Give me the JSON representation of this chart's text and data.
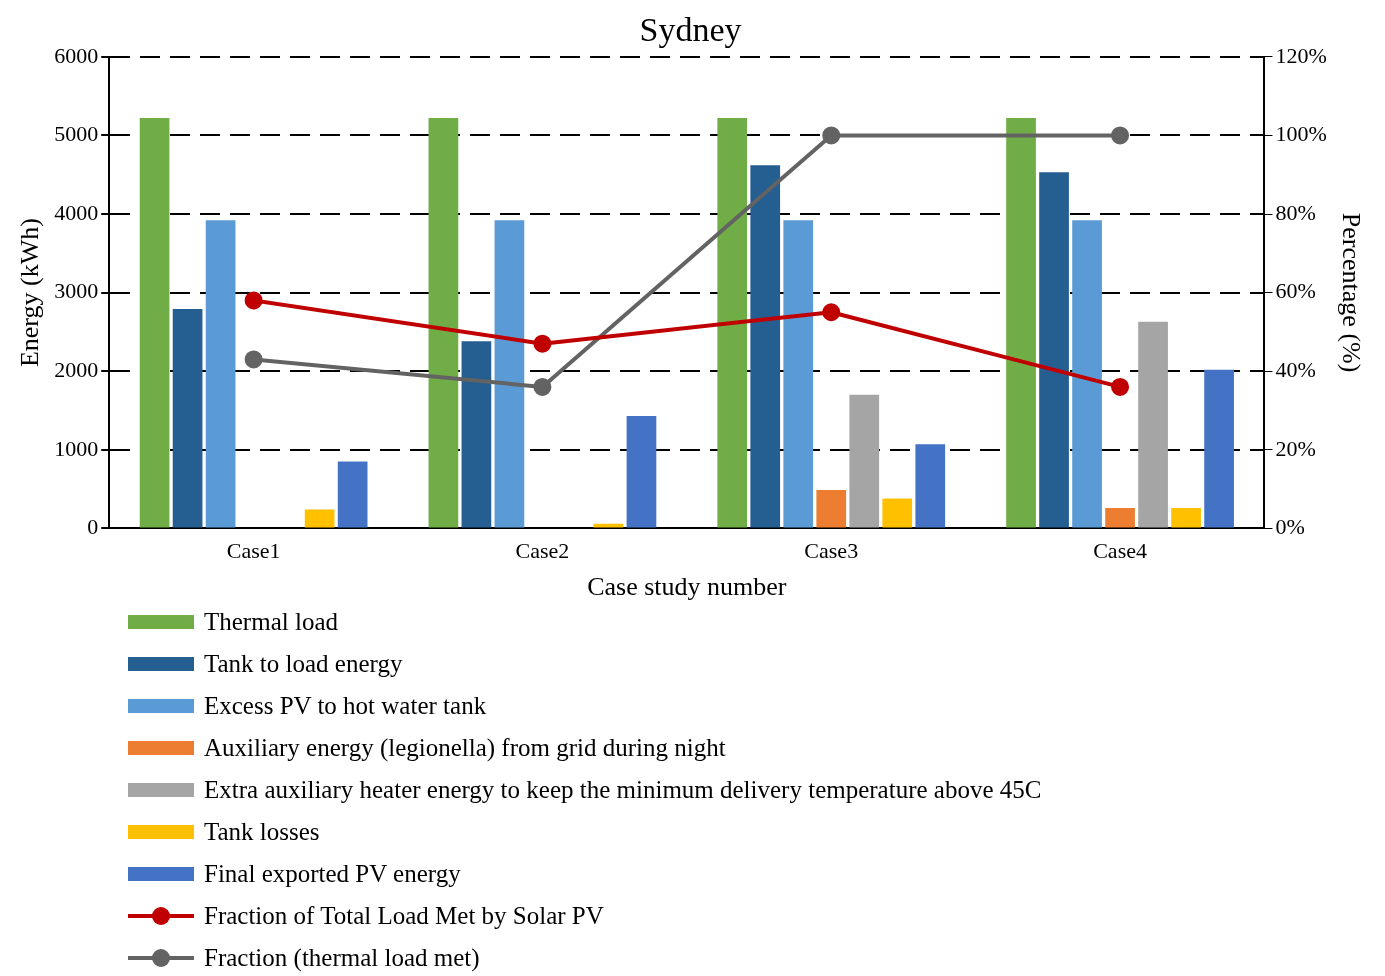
{
  "chart_data": {
    "type": "bar",
    "title": "Sydney",
    "xlabel": "Case study number",
    "ylabel": "Energy (kWh)",
    "y2label": "Percentage (%)",
    "categories": [
      "Case1",
      "Case2",
      "Case3",
      "Case4"
    ],
    "series": [
      {
        "name": "Thermal load",
        "color": "#70ad47",
        "values": [
          5220,
          5220,
          5220,
          5220
        ]
      },
      {
        "name": "Tank to load energy",
        "color": "#255e91",
        "values": [
          2790,
          2380,
          4620,
          4530
        ]
      },
      {
        "name": "Excess PV to hot water tank",
        "color": "#5b9bd5",
        "values": [
          3920,
          3920,
          3920,
          3920
        ]
      },
      {
        "name": "Auxiliary energy (legionella) from grid during night",
        "color": "#ed7d31",
        "values": [
          null,
          null,
          490,
          260
        ]
      },
      {
        "name": "Extra auxiliary heater energy to keep the minimum delivery temperature above 45C",
        "color": "#a5a5a5",
        "values": [
          null,
          null,
          1700,
          2630
        ]
      },
      {
        "name": "Tank losses",
        "color": "#ffc000",
        "values": [
          240,
          60,
          380,
          260
        ]
      },
      {
        "name": "Final exported PV energy",
        "color": "#4472c4",
        "values": [
          850,
          1430,
          1070,
          2020
        ]
      },
      {
        "name": "Fraction of Total Load Met by Solar PV",
        "type": "line",
        "axis": "y2",
        "color": "#c00000",
        "values": [
          58,
          47,
          55,
          36
        ]
      },
      {
        "name": "Fraction (thermal load met)",
        "type": "line",
        "axis": "y2",
        "color": "#636363",
        "values": [
          43,
          36,
          100,
          100
        ]
      }
    ],
    "ylim": [
      0,
      6000
    ],
    "yticks": [
      0,
      1000,
      2000,
      3000,
      4000,
      5000,
      6000
    ],
    "y2lim": [
      0,
      120
    ],
    "y2ticks": [
      {
        "value": 0,
        "label": "0%"
      },
      {
        "value": 20,
        "label": "20%"
      },
      {
        "value": 40,
        "label": "40%"
      },
      {
        "value": 60,
        "label": "60%"
      },
      {
        "value": 80,
        "label": "80%"
      },
      {
        "value": 100,
        "label": "100%"
      },
      {
        "value": 120,
        "label": "120%"
      }
    ],
    "grid": "y",
    "legend": "bottom",
    "marker": "circle",
    "line_style": "solid"
  }
}
